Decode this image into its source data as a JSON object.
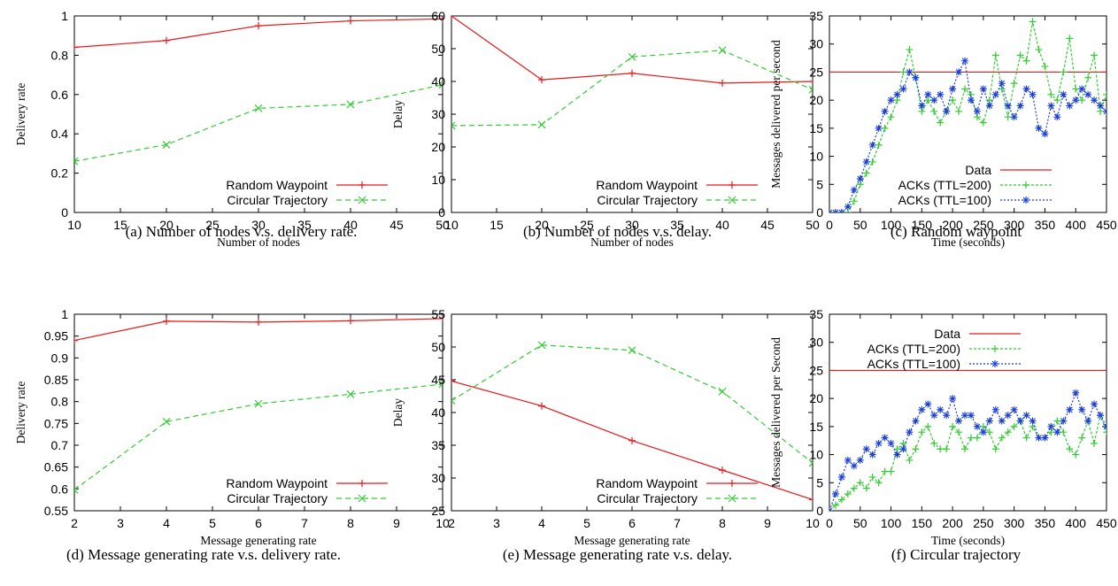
{
  "chart_data": [
    {
      "id": "a",
      "type": "line",
      "caption": "(a) Number of nodes v.s. delivery rate.",
      "xlabel": "Number of nodes",
      "ylabel": "Delivery rate",
      "xlim": [
        10,
        50
      ],
      "ylim": [
        0,
        1
      ],
      "xticks": [
        "10",
        "15",
        "20",
        "25",
        "30",
        "35",
        "40",
        "45",
        "50"
      ],
      "yticks": [
        "0",
        "0.2",
        "0.4",
        "0.6",
        "0.8",
        "1"
      ],
      "legend_position": "bottom-right",
      "series": [
        {
          "name": "Random Waypoint",
          "color": "#e41a1c",
          "dash": "",
          "marker": "plus",
          "x": [
            10,
            20,
            30,
            40,
            50
          ],
          "y": [
            0.84,
            0.875,
            0.95,
            0.975,
            0.985
          ]
        },
        {
          "name": "Circular Trajectory",
          "color": "#33cc33",
          "dash": "6,4",
          "marker": "cross",
          "x": [
            10,
            20,
            30,
            40,
            50
          ],
          "y": [
            0.26,
            0.345,
            0.53,
            0.55,
            0.65
          ]
        }
      ]
    },
    {
      "id": "b",
      "type": "line",
      "caption": "(b) Number of nodes v.s. delay.",
      "xlabel": "Number of nodes",
      "ylabel": "Delay",
      "xlim": [
        10,
        50
      ],
      "ylim": [
        0,
        60
      ],
      "xticks": [
        "10",
        "15",
        "20",
        "25",
        "30",
        "35",
        "40",
        "45",
        "50"
      ],
      "yticks": [
        "0",
        "10",
        "20",
        "30",
        "40",
        "50",
        "60"
      ],
      "legend_position": "bottom-right",
      "series": [
        {
          "name": "Random Waypoint",
          "color": "#e41a1c",
          "dash": "",
          "marker": "plus",
          "x": [
            10,
            20,
            30,
            40,
            50
          ],
          "y": [
            60,
            40.5,
            42.5,
            39.5,
            40
          ]
        },
        {
          "name": "Circular Trajectory",
          "color": "#33cc33",
          "dash": "6,4",
          "marker": "cross",
          "x": [
            10,
            20,
            30,
            40,
            50
          ],
          "y": [
            26.5,
            26.8,
            47.5,
            49.5,
            37.5
          ]
        }
      ]
    },
    {
      "id": "c",
      "type": "line",
      "caption": "(c) Random waypoint",
      "xlabel": "Time (seconds)",
      "ylabel": "Messages delivered per second",
      "xlim": [
        0,
        450
      ],
      "ylim": [
        0,
        35
      ],
      "xticks": [
        "0",
        "50",
        "100",
        "150",
        "200",
        "250",
        "300",
        "350",
        "400",
        "450"
      ],
      "yticks": [
        "0",
        "5",
        "10",
        "15",
        "20",
        "25",
        "30",
        "35"
      ],
      "legend_position": "bottom-right",
      "series": [
        {
          "name": "Data",
          "color": "#e41a1c",
          "dash": "",
          "marker": "none",
          "x": [
            0,
            450
          ],
          "y": [
            25,
            25
          ]
        },
        {
          "name": "ACKs (TTL=200)",
          "color": "#33cc33",
          "dash": "3,2",
          "marker": "plus",
          "x": [
            0,
            10,
            20,
            30,
            40,
            50,
            60,
            70,
            80,
            90,
            100,
            110,
            120,
            130,
            140,
            150,
            160,
            170,
            180,
            190,
            200,
            210,
            220,
            230,
            240,
            250,
            260,
            270,
            280,
            290,
            300,
            310,
            320,
            330,
            340,
            350,
            360,
            370,
            380,
            390,
            400,
            410,
            420,
            430,
            440,
            450
          ],
          "y": [
            0,
            0,
            0,
            0,
            2,
            5,
            7,
            9,
            12,
            15,
            17,
            20,
            25,
            29,
            24,
            18,
            20,
            18,
            16,
            18,
            20,
            18,
            22,
            21,
            17,
            16,
            20,
            28,
            22,
            17,
            23,
            28,
            27,
            34,
            29,
            26,
            21,
            20,
            25,
            31,
            22,
            20,
            24,
            28,
            18,
            21
          ]
        },
        {
          "name": "ACKs (TTL=100)",
          "color": "#1a3fd6",
          "dash": "2,2",
          "marker": "star",
          "x": [
            0,
            10,
            20,
            30,
            40,
            50,
            60,
            70,
            80,
            90,
            100,
            110,
            120,
            130,
            140,
            150,
            160,
            170,
            180,
            190,
            200,
            210,
            220,
            230,
            240,
            250,
            260,
            270,
            280,
            290,
            300,
            310,
            320,
            330,
            340,
            350,
            360,
            370,
            380,
            390,
            400,
            410,
            420,
            430,
            440,
            450
          ],
          "y": [
            0,
            0,
            0,
            1,
            4,
            6,
            9,
            12,
            15,
            18,
            20,
            21,
            22,
            25,
            24,
            19,
            21,
            20,
            21,
            18,
            22,
            25,
            27,
            20,
            18,
            22,
            19,
            21,
            23,
            19,
            17,
            19,
            22,
            21,
            15,
            14,
            19,
            17,
            21,
            19,
            20,
            22,
            21,
            20,
            19,
            18
          ]
        }
      ]
    },
    {
      "id": "d",
      "type": "line",
      "caption": "(d) Message generating rate v.s. delivery rate.",
      "xlabel": "Message generating rate",
      "ylabel": "Delivery rate",
      "xlim": [
        2,
        10
      ],
      "ylim": [
        0.55,
        1
      ],
      "xticks": [
        "2",
        "3",
        "4",
        "5",
        "6",
        "7",
        "8",
        "9",
        "10"
      ],
      "yticks": [
        "0.55",
        "0.6",
        "0.65",
        "0.7",
        "0.75",
        "0.8",
        "0.85",
        "0.9",
        "0.95",
        "1"
      ],
      "legend_position": "bottom-right",
      "series": [
        {
          "name": "Random Waypoint",
          "color": "#e41a1c",
          "dash": "",
          "marker": "plus",
          "x": [
            2,
            4,
            6,
            8,
            10
          ],
          "y": [
            0.94,
            0.984,
            0.982,
            0.985,
            0.99
          ]
        },
        {
          "name": "Circular Trajectory",
          "color": "#33cc33",
          "dash": "6,4",
          "marker": "cross",
          "x": [
            2,
            4,
            6,
            8,
            10
          ],
          "y": [
            0.598,
            0.754,
            0.795,
            0.817,
            0.84
          ]
        }
      ]
    },
    {
      "id": "e",
      "type": "line",
      "caption": "(e) Message generating rate v.s. delay.",
      "xlabel": "Message generating rate",
      "ylabel": "Delay",
      "xlim": [
        2,
        10
      ],
      "ylim": [
        25,
        55
      ],
      "xticks": [
        "2",
        "3",
        "4",
        "5",
        "6",
        "7",
        "8",
        "9",
        "10"
      ],
      "yticks": [
        "25",
        "30",
        "35",
        "40",
        "45",
        "50",
        "55"
      ],
      "legend_position": "bottom-right",
      "series": [
        {
          "name": "Random Waypoint",
          "color": "#e41a1c",
          "dash": "",
          "marker": "plus",
          "x": [
            2,
            4,
            6,
            8,
            10
          ],
          "y": [
            44.8,
            41,
            35.7,
            31.2,
            26.7
          ]
        },
        {
          "name": "Circular Trajectory",
          "color": "#33cc33",
          "dash": "6,4",
          "marker": "cross",
          "x": [
            2,
            4,
            6,
            8,
            10
          ],
          "y": [
            41.8,
            50.3,
            49.5,
            43.2,
            32.3
          ]
        }
      ]
    },
    {
      "id": "f",
      "type": "line",
      "caption": "(f) Circular trajectory",
      "xlabel": "Time (seconds)",
      "ylabel": "Messages delivered per Second",
      "xlim": [
        0,
        450
      ],
      "ylim": [
        0,
        35
      ],
      "xticks": [
        "0",
        "50",
        "100",
        "150",
        "200",
        "250",
        "300",
        "350",
        "400",
        "450"
      ],
      "yticks": [
        "0",
        "5",
        "10",
        "15",
        "20",
        "25",
        "30",
        "35"
      ],
      "legend_position": "top-left",
      "series": [
        {
          "name": "Data",
          "color": "#e41a1c",
          "dash": "",
          "marker": "none",
          "x": [
            0,
            450
          ],
          "y": [
            25,
            25
          ]
        },
        {
          "name": "ACKs (TTL=200)",
          "color": "#33cc33",
          "dash": "3,2",
          "marker": "plus",
          "x": [
            0,
            10,
            20,
            30,
            40,
            50,
            60,
            70,
            80,
            90,
            100,
            110,
            120,
            130,
            140,
            150,
            160,
            170,
            180,
            190,
            200,
            210,
            220,
            230,
            240,
            250,
            260,
            270,
            280,
            290,
            300,
            310,
            320,
            330,
            340,
            350,
            360,
            370,
            380,
            390,
            400,
            410,
            420,
            430,
            440,
            450
          ],
          "y": [
            0,
            1,
            2,
            3,
            4,
            5,
            4,
            6,
            5,
            7,
            7,
            11,
            12,
            9,
            11,
            14,
            15,
            12,
            11,
            11,
            15,
            14,
            11,
            13,
            13,
            15,
            14,
            11,
            13,
            14,
            15,
            16,
            13,
            15,
            13,
            13,
            14,
            16,
            14,
            11,
            10,
            13,
            16,
            12,
            17,
            14
          ]
        },
        {
          "name": "ACKs (TTL=100)",
          "color": "#1a3fd6",
          "dash": "2,2",
          "marker": "star",
          "x": [
            0,
            10,
            20,
            30,
            40,
            50,
            60,
            70,
            80,
            90,
            100,
            110,
            120,
            130,
            140,
            150,
            160,
            170,
            180,
            190,
            200,
            210,
            220,
            230,
            240,
            250,
            260,
            270,
            280,
            290,
            300,
            310,
            320,
            330,
            340,
            350,
            360,
            370,
            380,
            390,
            400,
            410,
            420,
            430,
            440,
            450
          ],
          "y": [
            0,
            3,
            6,
            9,
            8,
            9,
            11,
            10,
            12,
            13,
            12,
            10,
            11,
            14,
            16,
            18,
            19,
            17,
            18,
            17,
            20,
            16,
            17,
            17,
            15,
            14,
            16,
            18,
            16,
            17,
            18,
            16,
            17,
            16,
            13,
            13,
            15,
            14,
            16,
            18,
            21,
            18,
            16,
            19,
            17,
            15
          ]
        }
      ]
    }
  ]
}
